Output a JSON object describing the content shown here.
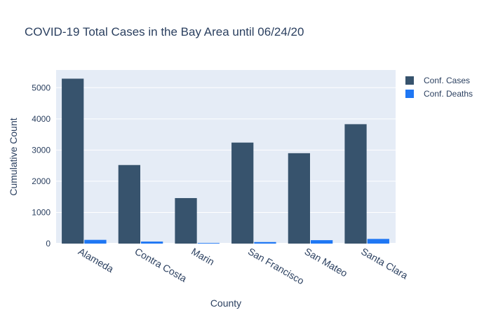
{
  "chart_data": {
    "type": "bar",
    "title": "COVID-19 Total Cases in the Bay Area until 06/24/20",
    "xlabel": "County",
    "ylabel": "Cumulative Count",
    "categories": [
      "Alameda",
      "Contra Costa",
      "Marin",
      "San Francisco",
      "San Mateo",
      "Santa Clara"
    ],
    "series": [
      {
        "name": "Conf. Cases",
        "color": "#37536d",
        "values": [
          5290,
          2520,
          1460,
          3240,
          2900,
          3830
        ]
      },
      {
        "name": "Conf. Deaths",
        "color": "#1f77f4",
        "values": [
          120,
          65,
          20,
          50,
          110,
          150
        ]
      }
    ],
    "ylim": [
      0,
      5568
    ],
    "yticks": [
      0,
      1000,
      2000,
      3000,
      4000,
      5000
    ],
    "grid": true,
    "legend_position": "top-right",
    "plot_background": "#e5ecf6"
  }
}
